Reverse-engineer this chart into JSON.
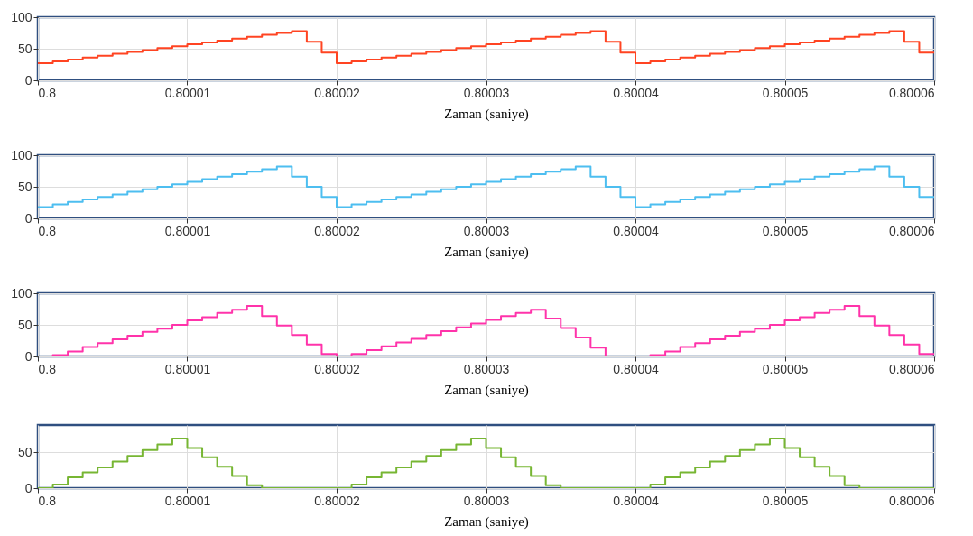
{
  "chart_data": [
    {
      "type": "step",
      "xlabel": "Zaman (saniye)",
      "xlim": [
        0.8,
        0.80006
      ],
      "xticks": [
        0.8,
        0.80001,
        0.80002,
        0.80003,
        0.80004,
        0.80005,
        0.80006
      ],
      "ylim": [
        0,
        100
      ],
      "yticks": [
        0,
        50,
        100
      ],
      "grid": true,
      "x": [
        0.8,
        0.800001,
        0.800002,
        0.800003,
        0.800004,
        0.800005,
        0.800006,
        0.800007,
        0.800008,
        0.800009,
        0.80001,
        0.800011,
        0.800012,
        0.800013,
        0.800014,
        0.800015,
        0.800016,
        0.800017,
        0.800018,
        0.800019,
        0.80002,
        0.800021,
        0.800022,
        0.800023,
        0.800024,
        0.800025,
        0.800026,
        0.800027,
        0.800028,
        0.800029,
        0.80003,
        0.800031,
        0.800032,
        0.800033,
        0.800034,
        0.800035,
        0.800036,
        0.800037,
        0.800038,
        0.800039,
        0.80004,
        0.800041,
        0.800042,
        0.800043,
        0.800044,
        0.800045,
        0.800046,
        0.800047,
        0.800048,
        0.800049,
        0.80005,
        0.800051,
        0.800052,
        0.800053,
        0.800054,
        0.800055,
        0.800056,
        0.800057,
        0.800058,
        0.800059,
        0.80006
      ],
      "series": [
        {
          "color": "#ff4422",
          "values": [
            27,
            30,
            33,
            36,
            39,
            42,
            45,
            48,
            51,
            54,
            57,
            60,
            63,
            66,
            69,
            72,
            75,
            78,
            61,
            44,
            27,
            30,
            33,
            36,
            39,
            42,
            45,
            48,
            51,
            54,
            57,
            60,
            63,
            66,
            69,
            72,
            75,
            78,
            61,
            44,
            27,
            30,
            33,
            36,
            39,
            42,
            45,
            48,
            51,
            54,
            57,
            60,
            63,
            66,
            69,
            72,
            75,
            78,
            61,
            44,
            44
          ]
        }
      ]
    },
    {
      "type": "step",
      "xlabel": "Zaman (saniye)",
      "xlim": [
        0.8,
        0.80006
      ],
      "xticks": [
        0.8,
        0.80001,
        0.80002,
        0.80003,
        0.80004,
        0.80005,
        0.80006
      ],
      "ylim": [
        0,
        100
      ],
      "yticks": [
        0,
        50,
        100
      ],
      "grid": true,
      "x": [
        0.8,
        0.800001,
        0.800002,
        0.800003,
        0.800004,
        0.800005,
        0.800006,
        0.800007,
        0.800008,
        0.800009,
        0.80001,
        0.800011,
        0.800012,
        0.800013,
        0.800014,
        0.800015,
        0.800016,
        0.800017,
        0.800018,
        0.800019,
        0.80002,
        0.800021,
        0.800022,
        0.800023,
        0.800024,
        0.800025,
        0.800026,
        0.800027,
        0.800028,
        0.800029,
        0.80003,
        0.800031,
        0.800032,
        0.800033,
        0.800034,
        0.800035,
        0.800036,
        0.800037,
        0.800038,
        0.800039,
        0.80004,
        0.800041,
        0.800042,
        0.800043,
        0.800044,
        0.800045,
        0.800046,
        0.800047,
        0.800048,
        0.800049,
        0.80005,
        0.800051,
        0.800052,
        0.800053,
        0.800054,
        0.800055,
        0.800056,
        0.800057,
        0.800058,
        0.800059,
        0.80006
      ],
      "series": [
        {
          "color": "#4dbef0",
          "values": [
            18,
            22,
            26,
            30,
            34,
            38,
            42,
            46,
            50,
            54,
            58,
            62,
            66,
            70,
            74,
            78,
            82,
            66,
            50,
            34,
            18,
            22,
            26,
            30,
            34,
            38,
            42,
            46,
            50,
            54,
            58,
            62,
            66,
            70,
            74,
            78,
            82,
            66,
            50,
            34,
            18,
            22,
            26,
            30,
            34,
            38,
            42,
            46,
            50,
            54,
            58,
            62,
            66,
            70,
            74,
            78,
            82,
            66,
            50,
            34,
            34
          ]
        }
      ]
    },
    {
      "type": "step",
      "xlabel": "Zaman (saniye)",
      "xlim": [
        0.8,
        0.80006
      ],
      "xticks": [
        0.8,
        0.80001,
        0.80002,
        0.80003,
        0.80004,
        0.80005,
        0.80006
      ],
      "ylim": [
        0,
        100
      ],
      "yticks": [
        0,
        50,
        100
      ],
      "grid": true,
      "x": [
        0.8,
        0.800001,
        0.800002,
        0.800003,
        0.800004,
        0.800005,
        0.800006,
        0.800007,
        0.800008,
        0.800009,
        0.80001,
        0.800011,
        0.800012,
        0.800013,
        0.800014,
        0.800015,
        0.800016,
        0.800017,
        0.800018,
        0.800019,
        0.80002,
        0.800021,
        0.800022,
        0.800023,
        0.800024,
        0.800025,
        0.800026,
        0.800027,
        0.800028,
        0.800029,
        0.80003,
        0.800031,
        0.800032,
        0.800033,
        0.800034,
        0.800035,
        0.800036,
        0.800037,
        0.800038,
        0.800039,
        0.80004,
        0.800041,
        0.800042,
        0.800043,
        0.800044,
        0.800045,
        0.800046,
        0.800047,
        0.800048,
        0.800049,
        0.80005,
        0.800051,
        0.800052,
        0.800053,
        0.800054,
        0.800055,
        0.800056,
        0.800057,
        0.800058,
        0.800059,
        0.80006
      ],
      "series": [
        {
          "color": "#ff33aa",
          "values": [
            0,
            2,
            8,
            15,
            21,
            27,
            33,
            39,
            44,
            50,
            57,
            62,
            69,
            74,
            80,
            64,
            49,
            34,
            19,
            4,
            0,
            4,
            10,
            16,
            22,
            28,
            34,
            40,
            46,
            52,
            58,
            64,
            69,
            74,
            60,
            45,
            30,
            14,
            0,
            0,
            0,
            2,
            8,
            15,
            21,
            27,
            33,
            39,
            44,
            50,
            57,
            62,
            69,
            74,
            80,
            64,
            49,
            34,
            19,
            4,
            4
          ]
        }
      ]
    },
    {
      "type": "step",
      "xlabel": "Zaman (saniye)",
      "xlim": [
        0.8,
        0.80006
      ],
      "xticks": [
        0.8,
        0.80001,
        0.80002,
        0.80003,
        0.80004,
        0.80005,
        0.80006
      ],
      "ylim": [
        0,
        88
      ],
      "yticks": [
        0,
        50
      ],
      "grid": true,
      "x": [
        0.8,
        0.800001,
        0.800002,
        0.800003,
        0.800004,
        0.800005,
        0.800006,
        0.800007,
        0.800008,
        0.800009,
        0.80001,
        0.800011,
        0.800012,
        0.800013,
        0.800014,
        0.800015,
        0.800016,
        0.800017,
        0.800018,
        0.800019,
        0.80002,
        0.800021,
        0.800022,
        0.800023,
        0.800024,
        0.800025,
        0.800026,
        0.800027,
        0.800028,
        0.800029,
        0.80003,
        0.800031,
        0.800032,
        0.800033,
        0.800034,
        0.800035,
        0.800036,
        0.800037,
        0.800038,
        0.800039,
        0.80004,
        0.800041,
        0.800042,
        0.800043,
        0.800044,
        0.800045,
        0.800046,
        0.800047,
        0.800048,
        0.800049,
        0.80005,
        0.800051,
        0.800052,
        0.800053,
        0.800054,
        0.800055,
        0.800056,
        0.800057,
        0.800058,
        0.800059,
        0.80006
      ],
      "series": [
        {
          "color": "#77b633",
          "values": [
            0,
            5,
            15,
            22,
            29,
            37,
            45,
            53,
            61,
            69,
            56,
            43,
            30,
            17,
            4,
            0,
            0,
            0,
            0,
            0,
            0,
            5,
            15,
            22,
            29,
            37,
            45,
            53,
            61,
            69,
            56,
            43,
            30,
            17,
            4,
            0,
            0,
            0,
            0,
            0,
            0,
            5,
            15,
            22,
            29,
            37,
            45,
            53,
            61,
            69,
            56,
            43,
            30,
            17,
            4,
            0,
            0,
            0,
            0,
            0,
            0
          ]
        }
      ]
    }
  ]
}
